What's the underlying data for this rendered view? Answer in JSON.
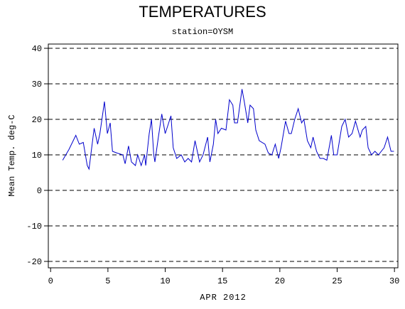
{
  "chart_data": {
    "type": "line",
    "title": "TEMPERATURES",
    "subtitle": "station=OYSM",
    "xlabel": "APR 2012",
    "ylabel": "Mean Temp. deg-C",
    "xlim": [
      -0.2,
      30.3
    ],
    "ylim": [
      -21.8,
      41.2
    ],
    "xticks": [
      0,
      5,
      10,
      15,
      20,
      25,
      30
    ],
    "yticks": [
      -20,
      -10,
      0,
      10,
      20,
      30,
      40
    ],
    "grid": true,
    "x": [
      1.05,
      1.6,
      2.2,
      2.5,
      2.85,
      3.2,
      3.35,
      3.8,
      4.1,
      4.3,
      4.7,
      4.95,
      5.2,
      5.4,
      5.8,
      6.3,
      6.5,
      6.8,
      7.05,
      7.4,
      7.6,
      7.9,
      8.2,
      8.3,
      8.6,
      8.8,
      9.0,
      9.1,
      9.4,
      9.7,
      10.0,
      10.2,
      10.5,
      10.7,
      11.0,
      11.4,
      11.7,
      12.0,
      12.3,
      12.6,
      13.0,
      13.3,
      13.7,
      13.9,
      14.2,
      14.4,
      14.6,
      14.9,
      15.3,
      15.6,
      15.9,
      16.05,
      16.3,
      16.7,
      16.9,
      17.2,
      17.4,
      17.7,
      17.9,
      18.2,
      18.7,
      19.0,
      19.3,
      19.6,
      19.9,
      20.1,
      20.5,
      20.8,
      21.0,
      21.3,
      21.6,
      21.9,
      22.1,
      22.4,
      22.7,
      22.9,
      23.2,
      23.5,
      23.8,
      24.1,
      24.5,
      24.7,
      25.0,
      25.4,
      25.7,
      26.0,
      26.3,
      26.6,
      27.0,
      27.2,
      27.5,
      27.7,
      28.0,
      28.3,
      28.6,
      29.1,
      29.4,
      29.7,
      29.95
    ],
    "series": [
      {
        "name": "Mean Temp",
        "color": "#0000cc",
        "values": [
          8.5,
          11.5,
          15.5,
          13,
          13.5,
          7,
          6,
          17.5,
          13,
          16,
          25,
          16,
          19,
          11,
          10.5,
          10,
          7.5,
          12.5,
          8,
          7,
          10,
          7,
          10,
          7,
          16,
          20,
          10,
          8,
          15,
          21.5,
          16,
          18,
          21,
          12,
          9,
          10,
          8,
          9,
          8,
          14,
          8,
          10,
          15,
          8,
          13,
          20,
          16,
          17.5,
          17,
          25.5,
          24,
          19,
          19,
          28.5,
          25,
          19,
          24,
          23,
          17,
          14,
          13,
          10.5,
          10,
          13,
          9,
          12,
          19.5,
          16,
          16,
          20,
          23,
          19,
          20,
          14,
          12,
          15,
          11,
          9,
          9,
          8.5,
          15.5,
          10,
          10,
          18,
          20,
          15,
          16,
          19.5,
          15,
          17,
          18,
          12,
          10,
          11,
          10,
          12,
          15,
          11,
          11
        ]
      }
    ]
  }
}
